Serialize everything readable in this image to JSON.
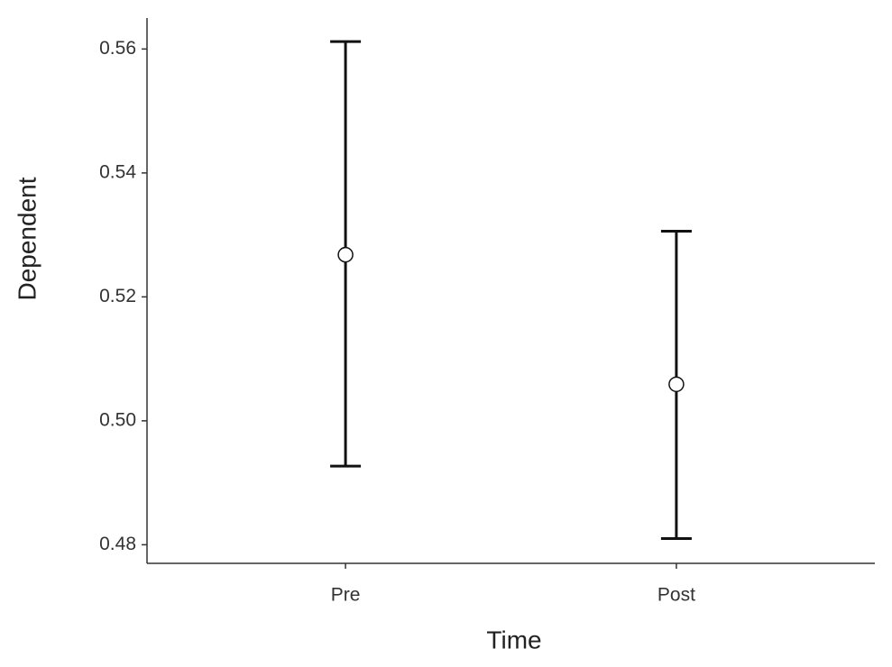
{
  "chart_data": {
    "type": "errorbar",
    "x_label": "Time",
    "y_label": "Dependent",
    "categories": [
      "Pre",
      "Post"
    ],
    "values": [
      0.5268,
      0.5059
    ],
    "lower": [
      0.4927,
      0.481
    ],
    "upper": [
      0.5612,
      0.5306
    ],
    "color": "#111111",
    "point_fill": "#ffffff",
    "ylim": [
      0.477,
      0.565
    ],
    "yticks": [
      0.48,
      {
        "value": 0.5,
        "label": "0.50"
      },
      0.52,
      0.54,
      0.56
    ],
    "grid": false
  }
}
